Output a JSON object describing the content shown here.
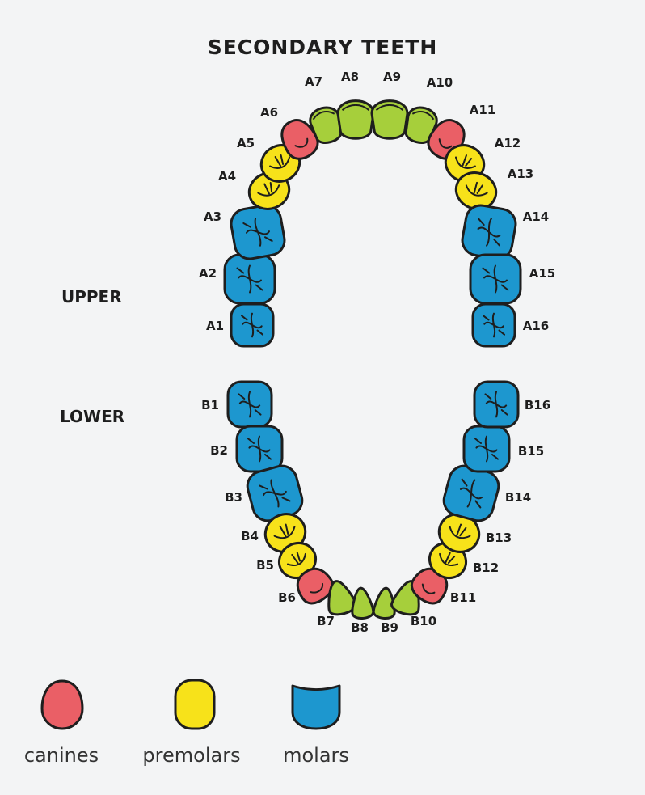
{
  "title": "SECONDARY TEETH",
  "jaws": {
    "upper": "UPPER",
    "lower": "LOWER"
  },
  "colors": {
    "incisor": "#a6cf3b",
    "canine": "#ea5f66",
    "premolar": "#f7e21a",
    "molar": "#1d97cf",
    "outline": "#1e1e1e"
  },
  "legend": [
    {
      "type": "canine",
      "label": "canines"
    },
    {
      "type": "premolar",
      "label": "premolars"
    },
    {
      "type": "molar",
      "label": "molars"
    }
  ],
  "teeth": {
    "upper": [
      {
        "id": "A1",
        "type": "molar"
      },
      {
        "id": "A2",
        "type": "molar"
      },
      {
        "id": "A3",
        "type": "molar"
      },
      {
        "id": "A4",
        "type": "premolar"
      },
      {
        "id": "A5",
        "type": "premolar"
      },
      {
        "id": "A6",
        "type": "canine"
      },
      {
        "id": "A7",
        "type": "incisor"
      },
      {
        "id": "A8",
        "type": "incisor"
      },
      {
        "id": "A9",
        "type": "incisor"
      },
      {
        "id": "A10",
        "type": "incisor"
      },
      {
        "id": "A11",
        "type": "canine"
      },
      {
        "id": "A12",
        "type": "premolar"
      },
      {
        "id": "A13",
        "type": "premolar"
      },
      {
        "id": "A14",
        "type": "molar"
      },
      {
        "id": "A15",
        "type": "molar"
      },
      {
        "id": "A16",
        "type": "molar"
      }
    ],
    "lower": [
      {
        "id": "B1",
        "type": "molar"
      },
      {
        "id": "B2",
        "type": "molar"
      },
      {
        "id": "B3",
        "type": "molar"
      },
      {
        "id": "B4",
        "type": "premolar"
      },
      {
        "id": "B5",
        "type": "premolar"
      },
      {
        "id": "B6",
        "type": "canine"
      },
      {
        "id": "B7",
        "type": "incisor"
      },
      {
        "id": "B8",
        "type": "incisor"
      },
      {
        "id": "B9",
        "type": "incisor"
      },
      {
        "id": "B10",
        "type": "incisor"
      },
      {
        "id": "B11",
        "type": "canine"
      },
      {
        "id": "B12",
        "type": "premolar"
      },
      {
        "id": "B13",
        "type": "premolar"
      },
      {
        "id": "B14",
        "type": "molar"
      },
      {
        "id": "B15",
        "type": "molar"
      },
      {
        "id": "B16",
        "type": "molar"
      }
    ]
  }
}
